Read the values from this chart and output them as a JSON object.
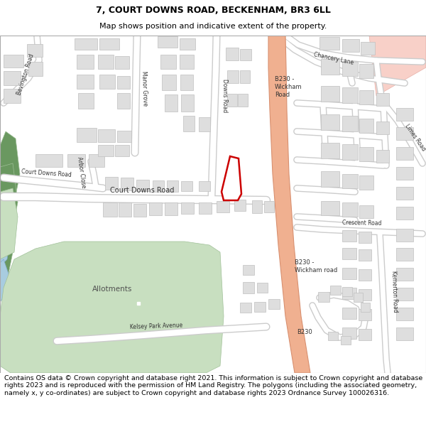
{
  "title_line1": "7, COURT DOWNS ROAD, BECKENHAM, BR3 6LL",
  "title_line2": "Map shows position and indicative extent of the property.",
  "footer_text": "Contains OS data © Crown copyright and database right 2021. This information is subject to Crown copyright and database rights 2023 and is reproduced with the permission of HM Land Registry. The polygons (including the associated geometry, namely x, y co-ordinates) are subject to Crown copyright and database rights 2023 Ordnance Survey 100026316.",
  "fig_width": 6.0,
  "fig_height": 6.25,
  "dpi": 100,
  "map_bg": "#f8f8f8",
  "road_color": "#ffffff",
  "road_edge": "#cccccc",
  "major_road_fill": "#f0b090",
  "major_road_edge": "#d89070",
  "building_fill": "#dedede",
  "building_edge": "#c0c0c0",
  "green_fill": "#c8dfc0",
  "green_edge": "#a0c098",
  "water_fill": "#a8cce0",
  "water_edge": "#80aac8",
  "dark_green_fill": "#6a9860",
  "pink_fill": "#f8d0c8",
  "pink_edge": "#e8b0a8",
  "property_color": "#cc0000",
  "title_fontsize": 9,
  "subtitle_fontsize": 8,
  "footer_fontsize": 6.8,
  "label_fontsize": 6.5,
  "small_label_fontsize": 5.5
}
